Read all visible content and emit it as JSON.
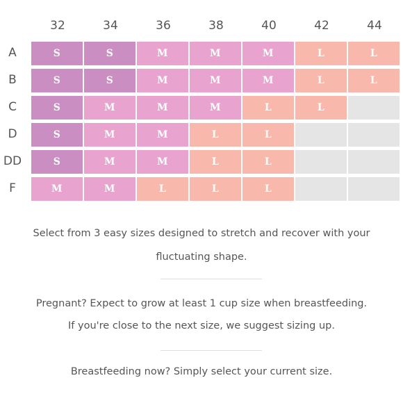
{
  "size_chart": {
    "band_sizes": [
      "32",
      "34",
      "36",
      "38",
      "40",
      "42",
      "44"
    ],
    "cup_sizes": [
      "A",
      "B",
      "C",
      "D",
      "DD",
      "F"
    ],
    "size_colors": {
      "S": "#cb8ec3",
      "M": "#e8a4cf",
      "L": "#f8b9ac",
      "none": "#e5e5e5"
    },
    "rows": [
      [
        "S",
        "S",
        "M",
        "M",
        "M",
        "L",
        "L"
      ],
      [
        "S",
        "S",
        "M",
        "M",
        "M",
        "L",
        "L"
      ],
      [
        "S",
        "M",
        "M",
        "M",
        "L",
        "L",
        ""
      ],
      [
        "S",
        "M",
        "M",
        "L",
        "L",
        "",
        ""
      ],
      [
        "S",
        "M",
        "M",
        "L",
        "L",
        "",
        ""
      ],
      [
        "M",
        "M",
        "L",
        "L",
        "L",
        "",
        ""
      ]
    ]
  },
  "info": {
    "line1": "Select from 3 easy sizes designed to stretch and recover with your",
    "line2": "fluctuating shape.",
    "line3": "Pregnant? Expect to grow at least 1 cup size when breastfeeding.",
    "line4": "If you're close to the next size, we suggest sizing up.",
    "line5": "Breastfeeding now? Simply select your current size."
  }
}
